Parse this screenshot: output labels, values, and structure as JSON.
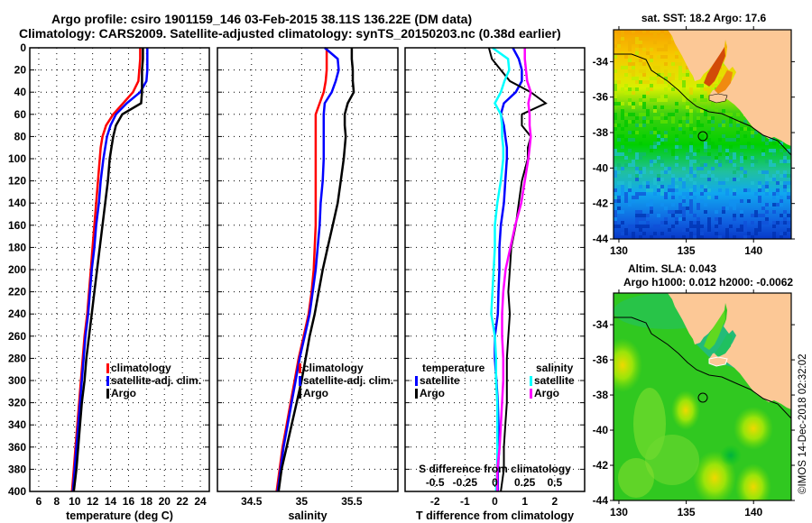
{
  "header": {
    "line1": "Argo profile: csiro 1901159_146 03-Feb-2015 38.11S 136.22E (DM data)",
    "line2": "Climatology: CARS2009. Satellite-adjusted climatology: synTS_20150203.nc (0.38d earlier)"
  },
  "colors": {
    "climatology": "#ff0000",
    "satellite": "#0000ff",
    "argo": "#000000",
    "sal_satellite": "#00ffff",
    "sal_argo": "#ff00ff",
    "land": "#fcc896"
  },
  "chart_data": [
    {
      "type": "line",
      "id": "temperature",
      "xlabel": "temperature (deg C)",
      "ylabel": "",
      "xlim": [
        5,
        25
      ],
      "ylim": [
        400,
        0
      ],
      "xticks": [
        6,
        8,
        10,
        12,
        14,
        16,
        18,
        20,
        22,
        24
      ],
      "yticks": [
        0,
        20,
        40,
        60,
        80,
        100,
        120,
        140,
        160,
        180,
        200,
        220,
        240,
        260,
        280,
        300,
        320,
        340,
        360,
        380,
        400
      ],
      "grid": true,
      "legend_placement": "lower-right",
      "depth": [
        0,
        10,
        20,
        30,
        40,
        50,
        60,
        70,
        80,
        90,
        100,
        120,
        140,
        160,
        180,
        200,
        220,
        240,
        260,
        280,
        300,
        320,
        340,
        360,
        380,
        400
      ],
      "series": [
        {
          "name": "climatology",
          "values": [
            17.3,
            17.3,
            17.2,
            17.1,
            16.5,
            15.4,
            14.3,
            13.5,
            13.1,
            12.9,
            12.8,
            12.6,
            12.4,
            12.2,
            12.0,
            11.8,
            11.6,
            11.4,
            11.1,
            10.9,
            10.7,
            10.5,
            10.3,
            10.1,
            9.9,
            9.7
          ]
        },
        {
          "name": "satellite-adj. clim.",
          "values": [
            18.1,
            18.1,
            18.1,
            18.0,
            17.3,
            15.8,
            14.6,
            14.0,
            13.6,
            13.4,
            13.2,
            12.9,
            12.7,
            12.4,
            12.2,
            11.9,
            11.7,
            11.5,
            11.2,
            11.0,
            10.8,
            10.6,
            10.4,
            10.2,
            10.0,
            9.8
          ]
        },
        {
          "name": "Argo",
          "values": [
            17.6,
            17.6,
            17.5,
            17.5,
            17.5,
            17.4,
            15.3,
            14.6,
            14.3,
            14.1,
            13.9,
            13.7,
            13.4,
            13.1,
            12.8,
            12.5,
            12.2,
            11.9,
            11.6,
            11.3,
            11.1,
            10.8,
            10.6,
            10.4,
            10.2,
            9.9
          ]
        }
      ]
    },
    {
      "type": "line",
      "id": "salinity",
      "xlabel": "salinity",
      "ylabel": "",
      "xlim": [
        34.16,
        35.96
      ],
      "ylim": [
        400,
        0
      ],
      "xticks": [
        34.5,
        35,
        35.5
      ],
      "grid": true,
      "legend_placement": "lower-right",
      "depth": [
        0,
        10,
        20,
        30,
        40,
        50,
        60,
        70,
        80,
        90,
        100,
        120,
        140,
        160,
        180,
        200,
        220,
        240,
        260,
        280,
        300,
        320,
        340,
        360,
        380,
        400
      ],
      "series": [
        {
          "name": "climatology",
          "values": [
            35.25,
            35.25,
            35.25,
            35.24,
            35.22,
            35.18,
            35.14,
            35.14,
            35.14,
            35.14,
            35.14,
            35.14,
            35.14,
            35.14,
            35.13,
            35.12,
            35.1,
            35.07,
            35.02,
            34.97,
            34.93,
            34.89,
            34.85,
            34.81,
            34.78,
            34.75
          ]
        },
        {
          "name": "satellite-adj. clim.",
          "values": [
            35.23,
            35.36,
            35.37,
            35.34,
            35.3,
            35.23,
            35.22,
            35.22,
            35.22,
            35.22,
            35.22,
            35.21,
            35.19,
            35.18,
            35.16,
            35.14,
            35.11,
            35.08,
            35.03,
            34.98,
            34.94,
            34.9,
            34.86,
            34.82,
            34.79,
            34.76
          ]
        },
        {
          "name": "Argo",
          "values": [
            35.5,
            35.5,
            35.51,
            35.51,
            35.52,
            35.46,
            35.43,
            35.43,
            35.44,
            35.43,
            35.42,
            35.39,
            35.36,
            35.31,
            35.26,
            35.21,
            35.17,
            35.13,
            35.08,
            35.04,
            35.0,
            34.95,
            34.9,
            34.85,
            34.8,
            34.77
          ]
        }
      ]
    },
    {
      "type": "line",
      "id": "difference",
      "xlabel": "T difference from climatology",
      "x2label": "S difference from climatology",
      "xlim": [
        -3,
        3
      ],
      "x2lim": [
        -0.75,
        0.75
      ],
      "ylim": [
        400,
        0
      ],
      "xticks": [
        -2,
        -1,
        0,
        1,
        2
      ],
      "x2ticks": [
        "-0.5",
        "-0.25",
        "0",
        "0.25",
        "0.5"
      ],
      "grid": true,
      "legend_placement": "lower-center",
      "depth": [
        0,
        10,
        20,
        30,
        40,
        50,
        60,
        70,
        80,
        90,
        100,
        120,
        140,
        160,
        180,
        200,
        220,
        240,
        260,
        280,
        300,
        320,
        340,
        360,
        380,
        400
      ],
      "series": [
        {
          "name": "temperature satellite",
          "axis": "T",
          "values": [
            0.6,
            0.8,
            0.9,
            0.9,
            0.7,
            0.3,
            0.2,
            0.3,
            0.35,
            0.4,
            0.4,
            0.35,
            0.3,
            0.2,
            0.15,
            0.15,
            0.12,
            0.1,
            0.0,
            0.0,
            0.05,
            0.1,
            0.12,
            0.15,
            0.1,
            0.1
          ]
        },
        {
          "name": "temperature Argo",
          "axis": "T",
          "values": [
            -0.2,
            -0.1,
            0.2,
            0.5,
            1.2,
            1.7,
            0.9,
            0.9,
            1.2,
            1.1,
            1.1,
            0.9,
            0.8,
            0.7,
            0.55,
            0.5,
            0.45,
            0.5,
            0.45,
            0.4,
            0.4,
            0.4,
            0.35,
            0.3,
            0.3,
            0.2
          ]
        },
        {
          "name": "salinity satellite",
          "axis": "S",
          "values": [
            -0.02,
            0.11,
            0.12,
            0.08,
            0.05,
            0.0,
            0.05,
            0.06,
            0.06,
            0.07,
            0.07,
            0.05,
            0.02,
            0.0,
            0.0,
            -0.01,
            -0.02,
            -0.03,
            0.0,
            0.01,
            0.01,
            0.02,
            0.02,
            0.02,
            0.02,
            0.01
          ]
        },
        {
          "name": "salinity Argo",
          "axis": "S",
          "values": [
            0.25,
            0.25,
            0.26,
            0.27,
            0.3,
            0.28,
            0.29,
            0.29,
            0.3,
            0.29,
            0.28,
            0.25,
            0.22,
            0.17,
            0.13,
            0.09,
            0.07,
            0.06,
            0.06,
            0.07,
            0.07,
            0.06,
            0.05,
            0.04,
            0.02,
            0.02
          ]
        }
      ]
    }
  ],
  "legends": {
    "temperature": [
      "climatology",
      "satellite-adj. clim.",
      "Argo"
    ],
    "salinity": [
      "climatology",
      "satellite-adj. clim.",
      "Argo"
    ],
    "difference": {
      "temp_header": "temperature",
      "temp_items": [
        "satellite",
        "Argo"
      ],
      "sal_header": "salinity",
      "sal_items": [
        "satellite",
        "Argo"
      ]
    }
  },
  "maps": {
    "sst": {
      "title": "sat. SST: 18.2 Argo: 17.6",
      "xticks": [
        "130",
        "135",
        "140"
      ],
      "yticks": [
        "-34",
        "-36",
        "-38",
        "-40",
        "-42",
        "-44"
      ],
      "float_position": {
        "lon": 136.22,
        "lat": -38.11
      }
    },
    "sla": {
      "title_line1": "Altim. SLA: 0.043",
      "title_line2": "Argo h1000: 0.012 h2000: -0.0062",
      "xticks": [
        "130",
        "135",
        "140"
      ],
      "yticks": [
        "-34",
        "-36",
        "-38",
        "-40",
        "-42",
        "-44"
      ],
      "float_position": {
        "lon": 136.22,
        "lat": -38.11
      }
    }
  },
  "footer": {
    "credit": "©IMOS 14-Dec-2018 02:32:02"
  }
}
